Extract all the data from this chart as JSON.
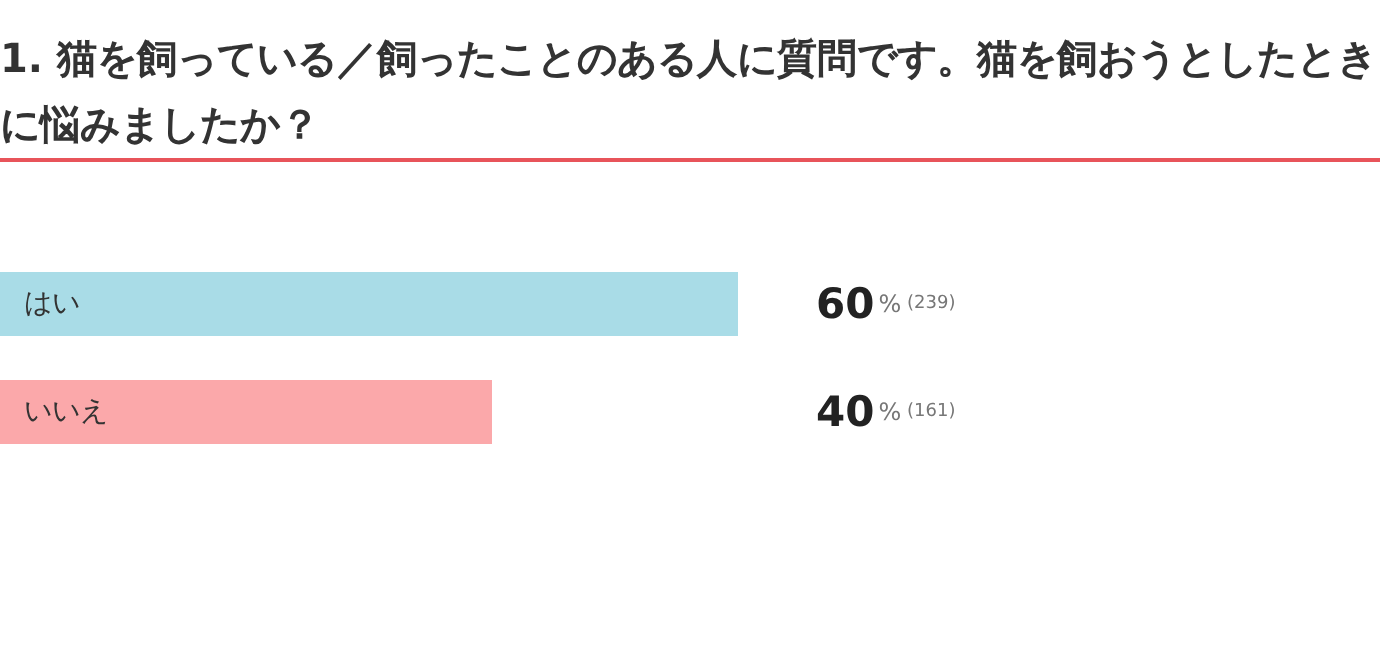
{
  "chart_data": {
    "type": "bar",
    "orientation": "horizontal",
    "title": "1. 猫を飼っている／飼ったことのある人に質問です。猫を飼おうとしたときに悩みましたか？",
    "categories": [
      "はい",
      "いいえ"
    ],
    "values": [
      60,
      40
    ],
    "colors": [
      "#a9dce7",
      "#fba8aa"
    ],
    "value_labels": [
      "60% (239)",
      "40% (161)"
    ]
  }
}
